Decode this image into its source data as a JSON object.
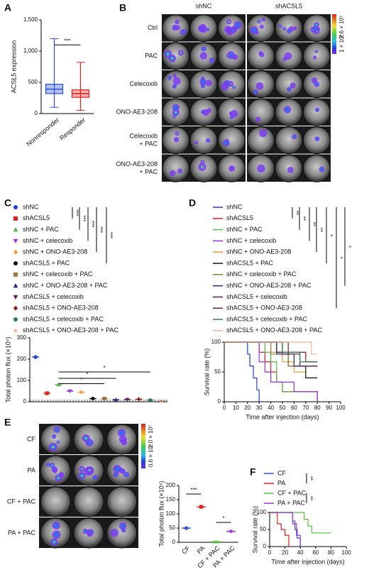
{
  "figure": {
    "panel_labels": [
      "A",
      "B",
      "C",
      "D",
      "E",
      "F"
    ]
  },
  "images": {
    "B": {
      "columns": [
        "shNC",
        "shACSL5"
      ],
      "rows": [
        [
          "Ctrl"
        ],
        [
          "PAC"
        ],
        [
          "Celecoxib"
        ],
        [
          "ONO-AE3-208"
        ],
        [
          "Celecoxib",
          "+ PAC"
        ],
        [
          "ONO-AE3-208",
          "+ PAC"
        ]
      ],
      "colorbar": [
        "2.6 × 10⁷",
        "1 × 10²"
      ]
    },
    "E": {
      "rows": [
        [
          "CF"
        ],
        [
          "PA"
        ],
        [
          "CF + PAC"
        ],
        [
          "PA + PAC"
        ]
      ],
      "colorbar": [
        "2.0 × 10⁷",
        "0.6 × 10⁴"
      ]
    }
  },
  "chart_data": [
    {
      "type": "box",
      "ylabel": "ACSL5 expression",
      "categories": [
        "Nonresponder",
        "Responder"
      ],
      "colors": [
        "#2b4fd8",
        "#e0201b"
      ],
      "boxes": [
        [
          100,
          320,
          390,
          470,
          1200
        ],
        [
          50,
          260,
          320,
          380,
          820
        ]
      ],
      "ylim": [
        0,
        1500
      ],
      "yticks": [
        0,
        500,
        {
          "value": 1000,
          "label": "1,000"
        },
        {
          "value": 1500,
          "label": "1,500"
        }
      ],
      "plot_annotations": [
        "***"
      ]
    },
    {
      "type": "dot",
      "ylabel": "Total photon flux (×10⁵)",
      "ylim": [
        0,
        300
      ],
      "yticks": [
        0,
        100,
        200,
        300
      ],
      "series": [
        {
          "name": "shNC",
          "color": "#1f3fd6",
          "marker": "circle",
          "values": [
            210
          ]
        },
        {
          "name": "shACSL5",
          "color": "#e0201b",
          "marker": "square",
          "values": [
            40
          ]
        },
        {
          "name": "shNC + PAC",
          "color": "#52b847",
          "marker": "triangle",
          "values": [
            80
          ]
        },
        {
          "name": "shNC + celecoxib",
          "color": "#9b30e0",
          "marker": "down",
          "values": [
            50
          ]
        },
        {
          "name": "shNC + ONO-AE3-208",
          "color": "#f29a38",
          "marker": "diamond",
          "values": [
            45
          ]
        },
        {
          "name": "shACSL5 + PAC",
          "color": "#111111",
          "marker": "circle",
          "values": [
            15
          ]
        },
        {
          "name": "shNC + celecoxib + PAC",
          "color": "#9a7b3a",
          "marker": "square",
          "values": [
            15
          ]
        },
        {
          "name": "shNC + ONO-AE3-208 + PAC",
          "color": "#1a2a7a",
          "marker": "triangle",
          "values": [
            10
          ]
        },
        {
          "name": "shACSL5 + celecoxib",
          "color": "#5a1a5a",
          "marker": "down",
          "values": [
            10
          ]
        },
        {
          "name": "shACSL5 + ONO-AE3-208",
          "color": "#8a1a1a",
          "marker": "diamond",
          "values": [
            12
          ]
        },
        {
          "name": "shACSL5 + celecoxib + PAC",
          "color": "#2e7d4f",
          "marker": "circle",
          "values": [
            8
          ]
        },
        {
          "name": "shACSL5 + ONO-AE3-208 + PAC",
          "color": "#f0b090",
          "marker": "star",
          "values": [
            5
          ]
        }
      ],
      "legend_annotations": [
        "***",
        "***",
        "***",
        "***",
        "***"
      ],
      "plot_annotations": [
        "*",
        "*",
        "*"
      ]
    },
    {
      "type": "line",
      "ylabel": "Survival rate (%)",
      "xlabel": "Time after injection (days)",
      "xlim": [
        0,
        100
      ],
      "ylim": [
        0,
        100
      ],
      "xticks": [
        0,
        10,
        20,
        30,
        40,
        50,
        60,
        70,
        80,
        90,
        100
      ],
      "yticks": [
        0,
        50,
        100
      ],
      "series": [
        {
          "name": "shNC",
          "color": "#1f3fd6",
          "x": [
            0,
            20,
            22,
            25,
            28,
            30
          ],
          "values": [
            100,
            80,
            60,
            40,
            20,
            0
          ]
        },
        {
          "name": "shACSL5",
          "color": "#e0201b",
          "x": [
            0,
            30,
            35,
            40,
            45,
            50,
            80
          ],
          "values": [
            100,
            83,
            67,
            50,
            33,
            17,
            0
          ]
        },
        {
          "name": "shNC + PAC",
          "color": "#52b847",
          "x": [
            0,
            35,
            40,
            45,
            50,
            80
          ],
          "values": [
            100,
            83,
            67,
            33,
            17,
            17
          ]
        },
        {
          "name": "shNC + celecoxib",
          "color": "#9b30e0",
          "x": [
            0,
            30,
            35,
            40,
            60,
            80
          ],
          "values": [
            100,
            67,
            50,
            33,
            17,
            0
          ]
        },
        {
          "name": "shNC + ONO-AE3-208",
          "color": "#f29a38",
          "x": [
            0,
            40,
            50,
            60,
            70,
            80
          ],
          "values": [
            100,
            83,
            67,
            50,
            40,
            40
          ]
        },
        {
          "name": "shACSL5 + PAC",
          "color": "#111111",
          "x": [
            0,
            45,
            55,
            70,
            80
          ],
          "values": [
            100,
            83,
            60,
            40,
            40
          ]
        },
        {
          "name": "shNC + celecoxib + PAC",
          "color": "#9a7b3a",
          "x": [
            0,
            40,
            55,
            70,
            80
          ],
          "values": [
            100,
            80,
            60,
            60,
            60
          ]
        },
        {
          "name": "shNC + ONO-AE3-208 + PAC",
          "color": "#1a2a7a",
          "x": [
            0,
            45,
            60,
            80
          ],
          "values": [
            100,
            80,
            60,
            60
          ]
        },
        {
          "name": "shACSL5 + celecoxib",
          "color": "#5a1a5a",
          "x": [
            0,
            50,
            65,
            80
          ],
          "values": [
            100,
            80,
            60,
            60
          ]
        },
        {
          "name": "shACSL5 + ONO-AE3-208",
          "color": "#8a1a1a",
          "x": [
            0,
            55,
            70,
            80
          ],
          "values": [
            100,
            83,
            67,
            67
          ]
        },
        {
          "name": "shACSL5 + celecoxib + PAC",
          "color": "#2e7d4f",
          "x": [
            0,
            50,
            65,
            80
          ],
          "values": [
            100,
            83,
            67,
            67
          ]
        },
        {
          "name": "shACSL5 + ONO-AE3-208 + PAC",
          "color": "#f0b090",
          "x": [
            0,
            60,
            75,
            80
          ],
          "values": [
            100,
            100,
            80,
            80
          ]
        }
      ],
      "legend_annotations": [
        "**",
        "**",
        "**",
        "**",
        "*",
        "*",
        "*"
      ]
    },
    {
      "type": "dot",
      "ylabel": "Total photon flux (×10⁵)",
      "ylim": [
        0,
        200
      ],
      "yticks": [
        0,
        50,
        100,
        150,
        200
      ],
      "categories": [
        "CF",
        "PA",
        "CF + PAC",
        "PA + PAC"
      ],
      "colors": [
        "#2b4fd8",
        "#e0201b",
        "#52c23a",
        "#a030d0"
      ],
      "markers": [
        "circle",
        "square",
        "triangle",
        "down"
      ],
      "values": [
        50,
        125,
        2,
        38
      ],
      "plot_annotations": [
        "***",
        "*"
      ]
    },
    {
      "type": "line",
      "ylabel": "Survival rate (%)",
      "xlabel": "Time after injection (days)",
      "xlim": [
        0,
        100
      ],
      "ylim": [
        0,
        100
      ],
      "xticks": [
        0,
        20,
        40,
        60,
        80,
        100
      ],
      "yticks": [
        0,
        50,
        100
      ],
      "series": [
        {
          "name": "CF",
          "color": "#2b4fd8",
          "x": [
            0,
            30,
            33,
            36,
            40
          ],
          "values": [
            100,
            75,
            50,
            25,
            0
          ]
        },
        {
          "name": "PA",
          "color": "#e0201b",
          "x": [
            0,
            10,
            15,
            20,
            25
          ],
          "values": [
            100,
            67,
            50,
            33,
            0
          ]
        },
        {
          "name": "CF + PAC",
          "color": "#52c23a",
          "x": [
            0,
            45,
            50,
            55,
            80
          ],
          "values": [
            100,
            80,
            60,
            40,
            40
          ]
        },
        {
          "name": "PA + PAC",
          "color": "#a030d0",
          "x": [
            0,
            30,
            35,
            40
          ],
          "values": [
            100,
            67,
            33,
            0
          ]
        }
      ],
      "legend_annotations": [
        "**",
        "**"
      ]
    }
  ]
}
